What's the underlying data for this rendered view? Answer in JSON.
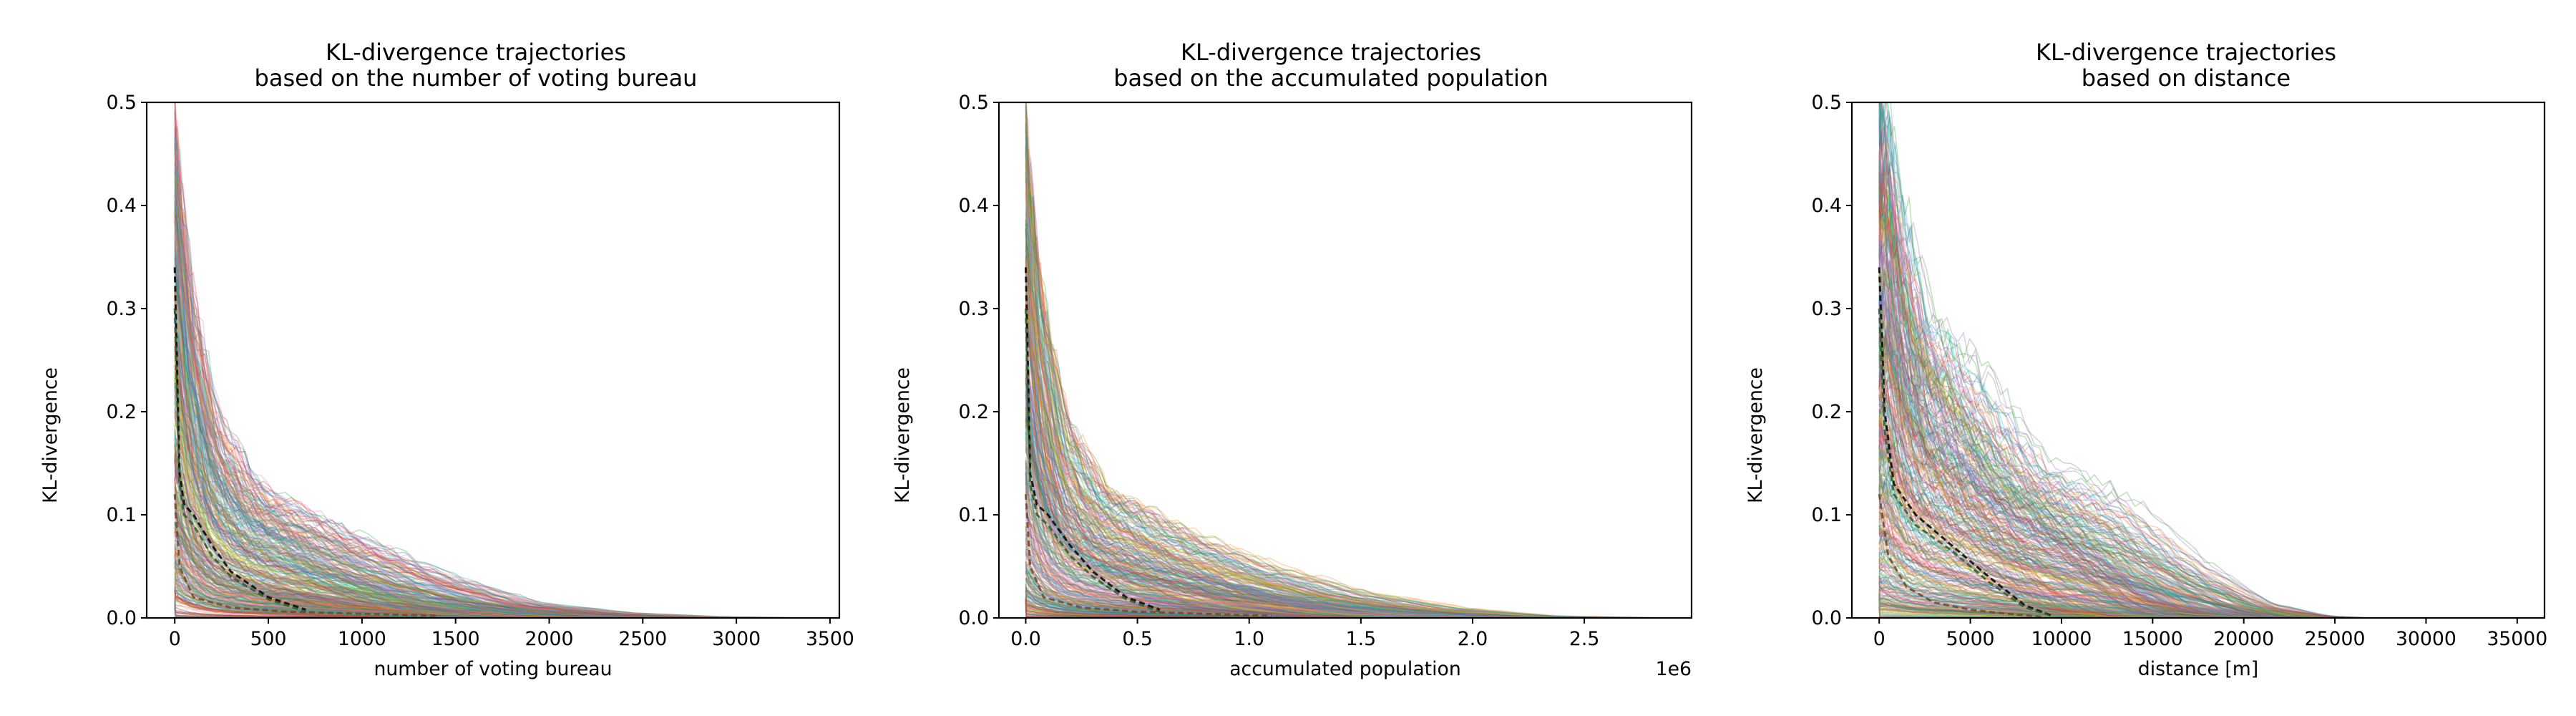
{
  "figure": {
    "background": "#ffffff"
  },
  "chart_data": [
    {
      "type": "line",
      "title": "KL-divergence trajectories\nbased on the number of voting bureau",
      "xlabel": "number of voting bureau",
      "ylabel": "KL-divergence",
      "xlim": [
        -150,
        3550
      ],
      "ylim": [
        0,
        0.5
      ],
      "xticks": [
        0,
        500,
        1000,
        1500,
        2000,
        2500,
        3000,
        3500
      ],
      "xtick_labels": [
        "0",
        "500",
        "1000",
        "1500",
        "2000",
        "2500",
        "3000",
        "3500"
      ],
      "yticks": [
        0.0,
        0.1,
        0.2,
        0.3,
        0.4,
        0.5
      ],
      "ytick_labels": [
        "0.0",
        "0.1",
        "0.2",
        "0.3",
        "0.4",
        "0.5"
      ],
      "offset_text": "",
      "grid": false,
      "series_count": 400,
      "opacity": 0.3,
      "approx_envelope": {
        "x": [
          0,
          25,
          100,
          250,
          500,
          1000,
          1500,
          2000,
          2500,
          3000,
          3400
        ],
        "y_max": [
          0.5,
          0.45,
          0.33,
          0.2,
          0.13,
          0.085,
          0.045,
          0.015,
          0.005,
          0.001,
          0
        ]
      },
      "highlight_series": [
        {
          "color": "#000000",
          "dash": true,
          "x": [
            0,
            25,
            50,
            100,
            200,
            300,
            500,
            700
          ],
          "y": [
            0.34,
            0.14,
            0.11,
            0.1,
            0.07,
            0.045,
            0.02,
            0.008
          ]
        },
        {
          "color": "#2a5c2a",
          "dash": true,
          "x": [
            0,
            25,
            50,
            100,
            200,
            300,
            500,
            700
          ],
          "y": [
            0.3,
            0.13,
            0.1,
            0.09,
            0.06,
            0.04,
            0.018,
            0.006
          ]
        },
        {
          "color": "#6b4a2a",
          "dash": true,
          "x": [
            0,
            25,
            100,
            300,
            600,
            1000,
            1400
          ],
          "y": [
            0.12,
            0.05,
            0.02,
            0.01,
            0.006,
            0.004,
            0.002
          ]
        }
      ]
    },
    {
      "type": "line",
      "title": "KL-divergence trajectories\nbased on the accumulated population",
      "xlabel": "accumulated population",
      "ylabel": "KL-divergence",
      "xlim": [
        -0.12,
        2.98
      ],
      "ylim": [
        0,
        0.5
      ],
      "xticks": [
        0.0,
        0.5,
        1.0,
        1.5,
        2.0,
        2.5
      ],
      "xtick_labels": [
        "0.0",
        "0.5",
        "1.0",
        "1.5",
        "2.0",
        "2.5"
      ],
      "yticks": [
        0.0,
        0.1,
        0.2,
        0.3,
        0.4,
        0.5
      ],
      "ytick_labels": [
        "0.0",
        "0.1",
        "0.2",
        "0.3",
        "0.4",
        "0.5"
      ],
      "offset_text": "1e6",
      "grid": false,
      "series_count": 400,
      "opacity": 0.3,
      "approx_envelope": {
        "x": [
          0,
          0.02,
          0.08,
          0.2,
          0.4,
          0.8,
          1.2,
          1.6,
          2.0,
          2.4,
          2.85
        ],
        "y_max": [
          0.5,
          0.45,
          0.33,
          0.2,
          0.13,
          0.085,
          0.05,
          0.025,
          0.01,
          0.002,
          0
        ]
      },
      "highlight_series": [
        {
          "color": "#000000",
          "dash": true,
          "x": [
            0,
            0.02,
            0.05,
            0.1,
            0.2,
            0.3,
            0.45,
            0.6
          ],
          "y": [
            0.34,
            0.14,
            0.11,
            0.1,
            0.07,
            0.045,
            0.02,
            0.008
          ]
        },
        {
          "color": "#2a5c2a",
          "dash": true,
          "x": [
            0,
            0.02,
            0.05,
            0.1,
            0.2,
            0.3,
            0.45,
            0.6
          ],
          "y": [
            0.3,
            0.13,
            0.1,
            0.09,
            0.06,
            0.04,
            0.018,
            0.006
          ]
        },
        {
          "color": "#6b4a2a",
          "dash": true,
          "x": [
            0,
            0.02,
            0.08,
            0.25,
            0.5,
            0.8,
            1.1
          ],
          "y": [
            0.12,
            0.05,
            0.02,
            0.01,
            0.006,
            0.004,
            0.002
          ]
        }
      ]
    },
    {
      "type": "line",
      "title": "KL-divergence trajectories\nbased on distance",
      "xlabel": "distance [m]",
      "ylabel": "KL-divergence",
      "xlim": [
        -1500,
        36500
      ],
      "ylim": [
        0,
        0.5
      ],
      "xticks": [
        0,
        5000,
        10000,
        15000,
        20000,
        25000,
        30000,
        35000
      ],
      "xtick_labels": [
        "0",
        "5000",
        "10000",
        "15000",
        "20000",
        "25000",
        "30000",
        "35000"
      ],
      "yticks": [
        0.0,
        0.1,
        0.2,
        0.3,
        0.4,
        0.5
      ],
      "ytick_labels": [
        "0.0",
        "0.1",
        "0.2",
        "0.3",
        "0.4",
        "0.5"
      ],
      "offset_text": "",
      "grid": false,
      "series_count": 400,
      "opacity": 0.3,
      "approx_envelope": {
        "x": [
          0,
          500,
          1500,
          3000,
          6000,
          10000,
          14000,
          18000,
          22000,
          25000,
          27000
        ],
        "y_max": [
          0.5,
          0.5,
          0.4,
          0.3,
          0.24,
          0.15,
          0.12,
          0.06,
          0.015,
          0.002,
          0
        ]
      },
      "highlight_series": [
        {
          "color": "#000000",
          "dash": true,
          "x": [
            0,
            300,
            800,
            2000,
            4000,
            6000,
            8000,
            9500
          ],
          "y": [
            0.34,
            0.2,
            0.13,
            0.1,
            0.07,
            0.04,
            0.012,
            0.002
          ]
        },
        {
          "color": "#2a5c2a",
          "dash": true,
          "x": [
            0,
            300,
            800,
            2000,
            4000,
            6000,
            8000,
            9500
          ],
          "y": [
            0.3,
            0.18,
            0.12,
            0.09,
            0.065,
            0.035,
            0.01,
            0.002
          ]
        },
        {
          "color": "#6b4a2a",
          "dash": true,
          "x": [
            0,
            500,
            1500,
            3000,
            5000,
            7000,
            9000
          ],
          "y": [
            0.12,
            0.06,
            0.03,
            0.015,
            0.008,
            0.004,
            0.001
          ]
        }
      ]
    }
  ],
  "palette": [
    "#1f77b4",
    "#ff7f0e",
    "#2ca02c",
    "#d62728",
    "#9467bd",
    "#8c564b",
    "#e377c2",
    "#7f7f7f",
    "#bcbd22",
    "#17becf"
  ]
}
